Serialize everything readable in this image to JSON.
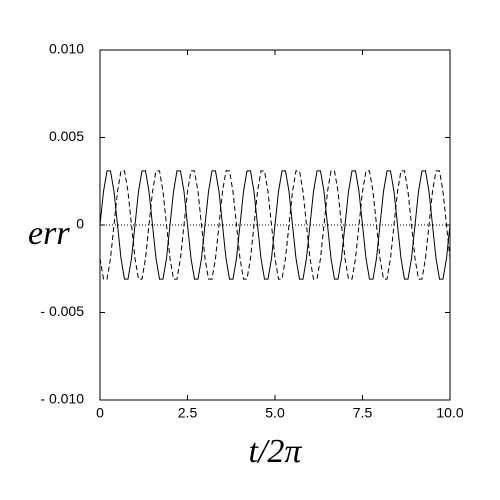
{
  "chart_data": {
    "type": "line",
    "xlabel": "t/2π",
    "ylabel": "err",
    "xlim": [
      0,
      10
    ],
    "ylim": [
      -0.01,
      0.01
    ],
    "xticks": [
      0,
      2.5,
      {
        "value": 5,
        "label": "5.0"
      },
      7.5,
      {
        "value": 10,
        "label": "10.0"
      }
    ],
    "yticks": [
      {
        "value": -0.01,
        "label": "- 0.010"
      },
      {
        "value": -0.005,
        "label": "- 0.005"
      },
      0,
      0.005,
      {
        "value": 0.01,
        "label": "0.010"
      }
    ],
    "x": [
      0,
      0.1,
      0.2,
      0.3,
      0.4,
      0.5,
      0.6,
      0.7,
      0.8,
      0.9,
      1,
      1.1,
      1.2,
      1.3,
      1.4,
      1.5,
      1.6,
      1.7,
      1.8,
      1.9,
      2,
      2.1,
      2.2,
      2.3,
      2.4,
      2.5,
      2.6,
      2.7,
      2.8,
      2.9,
      3,
      3.1,
      3.2,
      3.3,
      3.4,
      3.5,
      3.6,
      3.7,
      3.8,
      3.9,
      4,
      4.1,
      4.2,
      4.3,
      4.4,
      4.5,
      4.6,
      4.7,
      4.8,
      4.9,
      5,
      5.1,
      5.2,
      5.3,
      5.4,
      5.5,
      5.6,
      5.7,
      5.8,
      5.9,
      6,
      6.1,
      6.2,
      6.3,
      6.4,
      6.5,
      6.6,
      6.7,
      6.8,
      6.9,
      7,
      7.1,
      7.2,
      7.3,
      7.4,
      7.5,
      7.6,
      7.7,
      7.8,
      7.9,
      8,
      8.1,
      8.2,
      8.3,
      8.4,
      8.5,
      8.6,
      8.7,
      8.8,
      8.9,
      9,
      9.1,
      9.2,
      9.3,
      9.4,
      9.5,
      9.6,
      9.7,
      9.8,
      9.9,
      10
    ],
    "series": [
      {
        "color": "#000000",
        "line_style": "solid",
        "values": [
          0,
          0.00191,
          0.00309,
          0.00309,
          0.00191,
          0,
          -0.00191,
          -0.00309,
          -0.00309,
          -0.00191,
          0,
          0.00191,
          0.00309,
          0.00309,
          0.00191,
          0,
          -0.00191,
          -0.00309,
          -0.00309,
          -0.00191,
          0,
          0.00191,
          0.00309,
          0.00309,
          0.00191,
          0,
          -0.00191,
          -0.00309,
          -0.00309,
          -0.00191,
          0,
          0.00191,
          0.00309,
          0.00309,
          0.00191,
          0,
          -0.00191,
          -0.00309,
          -0.00309,
          -0.00191,
          0,
          0.00191,
          0.00309,
          0.00309,
          0.00191,
          0,
          -0.00191,
          -0.00309,
          -0.00309,
          -0.00191,
          0,
          0.00191,
          0.00309,
          0.00309,
          0.00191,
          0,
          -0.00191,
          -0.00309,
          -0.00309,
          -0.00191,
          0,
          0.00191,
          0.00309,
          0.00309,
          0.00191,
          0,
          -0.00191,
          -0.00309,
          -0.00309,
          -0.00191,
          0,
          0.00191,
          0.00309,
          0.00309,
          0.00191,
          0,
          -0.00191,
          -0.00309,
          -0.00309,
          -0.00191,
          0,
          0.00191,
          0.00309,
          0.00309,
          0.00191,
          0,
          -0.00191,
          -0.00309,
          -0.00309,
          -0.00191,
          0,
          0.00191,
          0.00309,
          0.00309,
          0.00191,
          0,
          -0.00191,
          -0.00309,
          -0.00309,
          -0.00191,
          0
        ]
      },
      {
        "color": "#000000",
        "line_style": "dashed",
        "values": [
          -0.00191,
          -0.00309,
          -0.00309,
          -0.00191,
          0,
          0.00191,
          0.00309,
          0.00309,
          0.00191,
          0,
          -0.00191,
          -0.00309,
          -0.00309,
          -0.00191,
          0,
          0.00191,
          0.00309,
          0.00309,
          0.00191,
          0,
          -0.00191,
          -0.00309,
          -0.00309,
          -0.00191,
          0,
          0.00191,
          0.00309,
          0.00309,
          0.00191,
          0,
          -0.00191,
          -0.00309,
          -0.00309,
          -0.00191,
          0,
          0.00191,
          0.00309,
          0.00309,
          0.00191,
          0,
          -0.00191,
          -0.00309,
          -0.00309,
          -0.00191,
          0,
          0.00191,
          0.00309,
          0.00309,
          0.00191,
          0,
          -0.00191,
          -0.00309,
          -0.00309,
          -0.00191,
          0,
          0.00191,
          0.00309,
          0.00309,
          0.00191,
          0,
          -0.00191,
          -0.00309,
          -0.00309,
          -0.00191,
          0,
          0.00191,
          0.00309,
          0.00309,
          0.00191,
          0,
          -0.00191,
          -0.00309,
          -0.00309,
          -0.00191,
          0,
          0.00191,
          0.00309,
          0.00309,
          0.00191,
          0,
          -0.00191,
          -0.00309,
          -0.00309,
          -0.00191,
          0,
          0.00191,
          0.00309,
          0.00309,
          0.00191,
          0,
          -0.00191,
          -0.00309,
          -0.00309,
          -0.00191,
          0,
          0.00191,
          0.00309,
          0.00309,
          0.00191,
          0,
          -0.00191
        ]
      },
      {
        "color": "#000000",
        "line_style": "dotted",
        "values": [
          0,
          0,
          0,
          0,
          0,
          0,
          0,
          0,
          0,
          0,
          0,
          0,
          0,
          0,
          0,
          0,
          0,
          0,
          0,
          0,
          0,
          0,
          0,
          0,
          0,
          0,
          0,
          0,
          0,
          0,
          0,
          0,
          0,
          0,
          0,
          0,
          0,
          0,
          0,
          0,
          0,
          0,
          0,
          0,
          0,
          0,
          0,
          0,
          0,
          0,
          0,
          0,
          0,
          0,
          0,
          0,
          0,
          0,
          0,
          0,
          0,
          0,
          0,
          0,
          0,
          0,
          0,
          0,
          0,
          0,
          0,
          0,
          0,
          0,
          0,
          0,
          0,
          0,
          0,
          0,
          0,
          0,
          0,
          0,
          0,
          0,
          0,
          0,
          0,
          0,
          0,
          0,
          0,
          0,
          0,
          0,
          0,
          0,
          0,
          0,
          0
        ]
      }
    ]
  }
}
